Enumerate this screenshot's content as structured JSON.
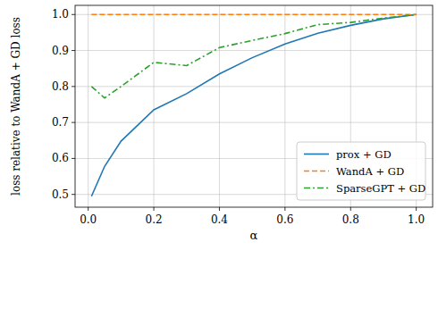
{
  "chart_data": {
    "type": "line",
    "x_label": "α",
    "y_label": "loss relative to WandA + GD loss",
    "x": [
      0.01,
      0.05,
      0.1,
      0.2,
      0.3,
      0.4,
      0.5,
      0.6,
      0.7,
      0.8,
      0.9,
      1.0
    ],
    "series": [
      {
        "name": "prox + GD",
        "color": "#1f77b4",
        "line_style": "solid",
        "values": [
          0.495,
          0.578,
          0.648,
          0.735,
          0.78,
          0.835,
          0.88,
          0.918,
          0.948,
          0.97,
          0.988,
          1.0
        ]
      },
      {
        "name": "WandA + GD",
        "color": "#ff7f0e",
        "line_style": "dashed",
        "values": [
          1.0,
          1.0,
          1.0,
          1.0,
          1.0,
          1.0,
          1.0,
          1.0,
          1.0,
          1.0,
          1.0,
          1.0
        ]
      },
      {
        "name": "SparseGPT + GD",
        "color": "#2ca02c",
        "line_style": "dashdot",
        "values": [
          0.8,
          0.768,
          0.8,
          0.867,
          0.858,
          0.908,
          0.928,
          0.947,
          0.972,
          0.978,
          0.99,
          1.0
        ]
      }
    ],
    "xlim": [
      -0.04,
      1.05
    ],
    "ylim": [
      0.4645,
      1.0255
    ],
    "xticks": [
      {
        "value": 0,
        "label": "0.0"
      },
      {
        "value": 0.2,
        "label": "0.2"
      },
      {
        "value": 0.4,
        "label": "0.4"
      },
      {
        "value": 0.6,
        "label": "0.6"
      },
      {
        "value": 0.8,
        "label": "0.8"
      },
      {
        "value": 1,
        "label": "1.0"
      }
    ],
    "yticks": [
      {
        "value": 0.5,
        "label": "0.5"
      },
      {
        "value": 0.6,
        "label": "0.6"
      },
      {
        "value": 0.7,
        "label": "0.7"
      },
      {
        "value": 0.8,
        "label": "0.8"
      },
      {
        "value": 0.9,
        "label": "0.9"
      },
      {
        "value": 1,
        "label": "1.0"
      }
    ],
    "grid": true,
    "legend": "lower right"
  }
}
